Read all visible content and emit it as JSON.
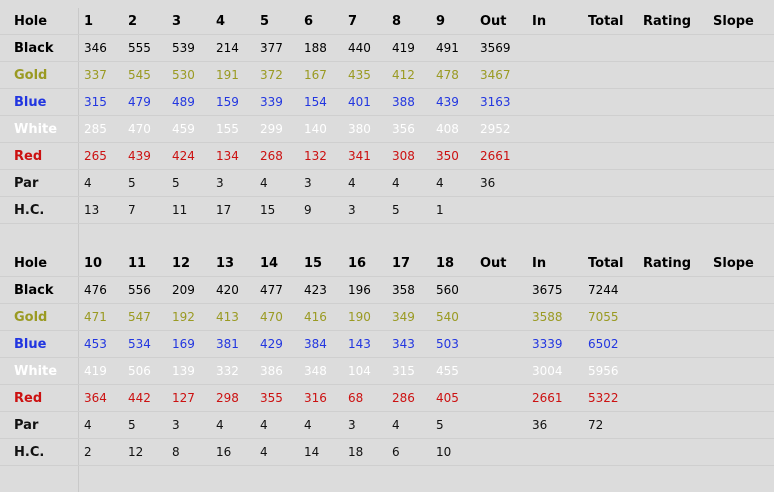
{
  "colors": {
    "black": "#000000",
    "gold": "#9a9a22",
    "blue": "#2236e0",
    "white": "#ffffff",
    "red": "#cc1111",
    "par": "#111111"
  },
  "front": {
    "headers": [
      "Hole",
      "1",
      "2",
      "3",
      "4",
      "5",
      "6",
      "7",
      "8",
      "9",
      "Out",
      "In",
      "Total",
      "Rating",
      "Slope"
    ],
    "rows": [
      {
        "key": "black",
        "label": "Black",
        "values": [
          "346",
          "555",
          "539",
          "214",
          "377",
          "188",
          "440",
          "419",
          "491",
          "3569",
          "",
          "",
          "",
          ""
        ]
      },
      {
        "key": "gold",
        "label": "Gold",
        "values": [
          "337",
          "545",
          "530",
          "191",
          "372",
          "167",
          "435",
          "412",
          "478",
          "3467",
          "",
          "",
          "",
          ""
        ]
      },
      {
        "key": "blue",
        "label": "Blue",
        "values": [
          "315",
          "479",
          "489",
          "159",
          "339",
          "154",
          "401",
          "388",
          "439",
          "3163",
          "",
          "",
          "",
          ""
        ]
      },
      {
        "key": "white",
        "label": "White",
        "values": [
          "285",
          "470",
          "459",
          "155",
          "299",
          "140",
          "380",
          "356",
          "408",
          "2952",
          "",
          "",
          "",
          ""
        ]
      },
      {
        "key": "red",
        "label": "Red",
        "values": [
          "265",
          "439",
          "424",
          "134",
          "268",
          "132",
          "341",
          "308",
          "350",
          "2661",
          "",
          "",
          "",
          ""
        ]
      },
      {
        "key": "par",
        "label": "Par",
        "values": [
          "4",
          "5",
          "5",
          "3",
          "4",
          "3",
          "4",
          "4",
          "4",
          "36",
          "",
          "",
          "",
          ""
        ]
      },
      {
        "key": "par",
        "label": "H.C.",
        "values": [
          "13",
          "7",
          "11",
          "17",
          "15",
          "9",
          "3",
          "5",
          "1",
          "",
          "",
          "",
          "",
          ""
        ]
      }
    ]
  },
  "back": {
    "headers": [
      "Hole",
      "10",
      "11",
      "12",
      "13",
      "14",
      "15",
      "16",
      "17",
      "18",
      "Out",
      "In",
      "Total",
      "Rating",
      "Slope"
    ],
    "rows": [
      {
        "key": "black",
        "label": "Black",
        "values": [
          "476",
          "556",
          "209",
          "420",
          "477",
          "423",
          "196",
          "358",
          "560",
          "",
          "3675",
          "7244",
          "",
          ""
        ]
      },
      {
        "key": "gold",
        "label": "Gold",
        "values": [
          "471",
          "547",
          "192",
          "413",
          "470",
          "416",
          "190",
          "349",
          "540",
          "",
          "3588",
          "7055",
          "",
          ""
        ]
      },
      {
        "key": "blue",
        "label": "Blue",
        "values": [
          "453",
          "534",
          "169",
          "381",
          "429",
          "384",
          "143",
          "343",
          "503",
          "",
          "3339",
          "6502",
          "",
          ""
        ]
      },
      {
        "key": "white",
        "label": "White",
        "values": [
          "419",
          "506",
          "139",
          "332",
          "386",
          "348",
          "104",
          "315",
          "455",
          "",
          "3004",
          "5956",
          "",
          ""
        ]
      },
      {
        "key": "red",
        "label": "Red",
        "values": [
          "364",
          "442",
          "127",
          "298",
          "355",
          "316",
          "68",
          "286",
          "405",
          "",
          "2661",
          "5322",
          "",
          ""
        ]
      },
      {
        "key": "par",
        "label": "Par",
        "values": [
          "4",
          "5",
          "3",
          "4",
          "4",
          "4",
          "3",
          "4",
          "5",
          "",
          "36",
          "72",
          "",
          ""
        ]
      },
      {
        "key": "par",
        "label": "H.C.",
        "values": [
          "2",
          "12",
          "8",
          "16",
          "4",
          "14",
          "18",
          "6",
          "10",
          "",
          "",
          "",
          "",
          ""
        ]
      }
    ]
  }
}
